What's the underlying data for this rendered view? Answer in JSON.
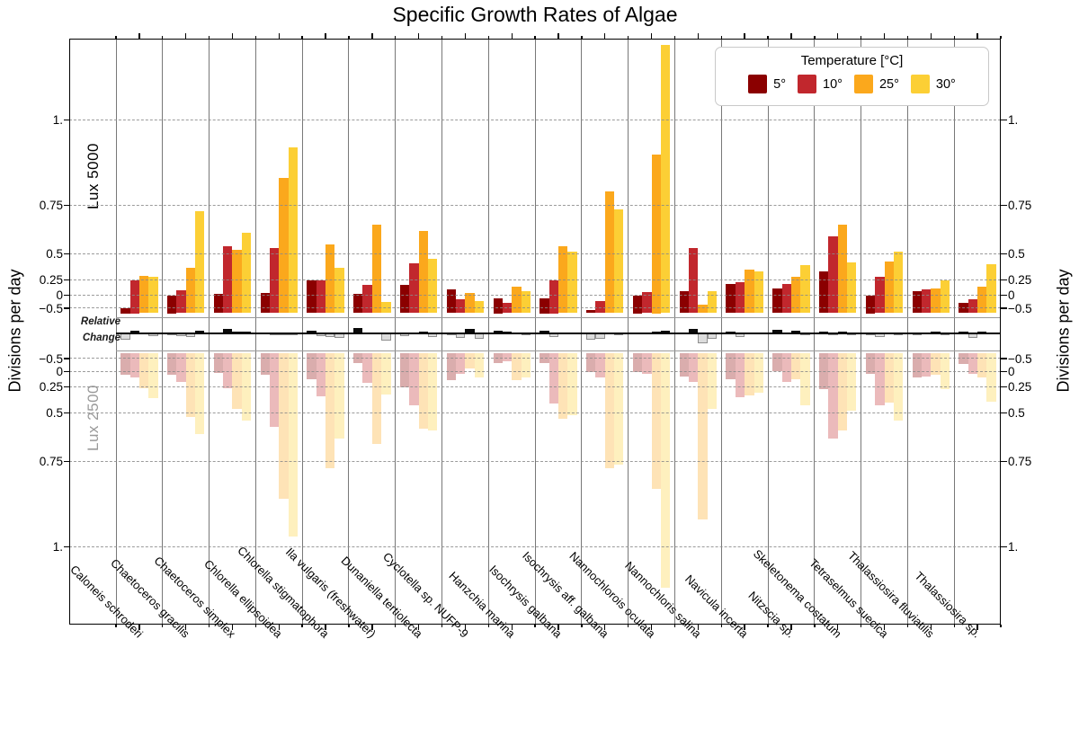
{
  "title": "Specific Growth Rates of Algae",
  "y_axis": {
    "label_left": "Divisions per day",
    "label_right": "Divisions per day"
  },
  "legend": {
    "title": "Temperature [°C]",
    "items": [
      {
        "label": "5°",
        "color": "#8b0000"
      },
      {
        "label": "10°",
        "color": "#c1272d"
      },
      {
        "label": "25°",
        "color": "#fba81c"
      },
      {
        "label": "30°",
        "color": "#fccf35"
      }
    ]
  },
  "panels": {
    "top": {
      "label": "Lux 5000",
      "label_color": "#000000",
      "tick_labels": [
        "1.",
        "0.75",
        "0.5",
        "0.25",
        "0",
        "−0.5"
      ],
      "tick_values": [
        1,
        0.75,
        0.5,
        0.25,
        0,
        -0.5
      ]
    },
    "bottom": {
      "label": "Lux 2500",
      "label_color": "#9a9a9a",
      "tick_labels": [
        "−0.5",
        "0",
        "0.25",
        "0.5",
        "0.75",
        "1."
      ],
      "tick_values": [
        -0.5,
        0,
        0.25,
        0.5,
        0.75,
        1
      ]
    }
  },
  "strip": {
    "label_line1": "Relative",
    "label_line2": "Change"
  },
  "style": {
    "bar_colors": [
      "#8b0000",
      "#c1272d",
      "#fba81c",
      "#fccf35"
    ],
    "mirror_opacity": 0.32,
    "grid_color": "#8a8a8a",
    "separator_color": "#787878",
    "rel_pos_color": "#0a0a0a",
    "rel_neg_fill": "#dcdcdc",
    "rel_neg_border": "#8f8f8f"
  },
  "chart_data": {
    "type": "bar",
    "title": "Specific Growth Rates of Algae",
    "ylabel": "Divisions per day",
    "yticks": [
      -0.5,
      0,
      0.25,
      0.5,
      0.75,
      1
    ],
    "grid": true,
    "legend_position": "top-right",
    "temperatures_c": [
      5,
      10,
      25,
      30
    ],
    "categories": [
      "Caloneis schroderi",
      "Chaetoceros gracilis",
      "Chaetoceros simplex",
      "Chlorella ellipsoidea",
      "Chlorella stigmatophora",
      "Ila vulgaris (freshwater)",
      "Dunaniella tertiolecta",
      "Cyclotella sp. NUFP-9",
      "Hanzchia marina",
      "Isochrysis galbana",
      "Isochrysis aff. galbana",
      "Nannochlorois oculata",
      "Nannochloris salina",
      "Navicula incerta",
      "Nitzscia sp.",
      "Skeletonema costatum",
      "Tetraselmus suecica",
      "Thalassiosira fluviatilis",
      "Thalassiosira sp."
    ],
    "series": [
      {
        "name": "Lux 5000",
        "values": [
          [
            -0.5,
            0.25,
            0.29,
            0.28
          ],
          [
            0.0,
            0.08,
            0.37,
            0.72
          ],
          [
            0.02,
            0.54,
            0.52,
            0.61
          ],
          [
            0.03,
            0.53,
            0.83,
            0.92
          ],
          [
            0.24,
            0.24,
            0.55,
            0.37
          ],
          [
            0.02,
            0.17,
            0.65,
            -0.36
          ],
          [
            0.17,
            0.41,
            0.62,
            0.45
          ],
          [
            0.1,
            -0.28,
            0.03,
            -0.33
          ],
          [
            -0.25,
            -0.38,
            0.14,
            0.06
          ],
          [
            -0.25,
            0.25,
            0.54,
            0.51
          ],
          [
            -0.53,
            -0.33,
            0.79,
            0.73
          ],
          [
            0.0,
            0.05,
            0.9,
            1.22
          ],
          [
            0.07,
            0.53,
            -0.43,
            0.06
          ],
          [
            0.18,
            0.21,
            0.35,
            0.33
          ],
          [
            0.11,
            0.19,
            0.28,
            0.39
          ],
          [
            0.33,
            0.59,
            0.65,
            0.42
          ],
          [
            0.0,
            0.28,
            0.43,
            0.51
          ],
          [
            0.07,
            0.1,
            0.11,
            0.24
          ],
          [
            -0.38,
            -0.28,
            0.14,
            0.4
          ]
        ]
      },
      {
        "name": "Lux 2500",
        "values": [
          [
            0.05,
            0.1,
            0.26,
            0.36
          ],
          [
            0.05,
            0.17,
            0.52,
            0.61
          ],
          [
            0.02,
            0.26,
            0.46,
            0.54
          ],
          [
            0.05,
            0.57,
            0.86,
            0.97
          ],
          [
            0.12,
            0.34,
            0.77,
            0.63
          ],
          [
            -0.4,
            0.18,
            0.66,
            0.32
          ],
          [
            0.25,
            0.43,
            0.58,
            0.59
          ],
          [
            0.14,
            0.03,
            -0.25,
            0.1
          ],
          [
            -0.4,
            -0.45,
            0.14,
            0.1
          ],
          [
            -0.4,
            0.41,
            0.53,
            0.51
          ],
          [
            0.0,
            0.1,
            0.77,
            0.76
          ],
          [
            0.0,
            0.03,
            0.83,
            1.12
          ],
          [
            0.08,
            0.17,
            0.92,
            0.46
          ],
          [
            0.12,
            0.35,
            0.33,
            0.31
          ],
          [
            -0.1,
            0.17,
            0.12,
            0.43
          ],
          [
            0.27,
            0.63,
            0.59,
            0.48
          ],
          [
            0.03,
            0.43,
            0.4,
            0.54
          ],
          [
            0.1,
            0.08,
            0.05,
            0.27
          ],
          [
            -0.38,
            0.03,
            0.1,
            0.39
          ]
        ]
      }
    ],
    "relative_change": [
      [
        -0.55,
        0.15,
        0.03,
        -0.08
      ],
      [
        -0.05,
        -0.09,
        -0.15,
        0.11
      ],
      [
        0.0,
        0.28,
        0.06,
        0.07
      ],
      [
        -0.02,
        -0.04,
        -0.03,
        -0.05
      ],
      [
        0.12,
        -0.1,
        -0.22,
        -0.26
      ],
      [
        0.42,
        -0.01,
        -0.01,
        -0.68
      ],
      [
        -0.08,
        -0.02,
        0.04,
        -0.14
      ],
      [
        -0.04,
        -0.31,
        0.28,
        -0.43
      ],
      [
        0.15,
        0.07,
        0.0,
        -0.04
      ],
      [
        0.15,
        -0.16,
        0.01,
        0.0
      ],
      [
        -0.53,
        -0.43,
        0.02,
        -0.03
      ],
      [
        0.0,
        0.02,
        0.07,
        0.1
      ],
      [
        -0.01,
        0.36,
        -1.35,
        -0.4
      ],
      [
        0.06,
        -0.14,
        0.02,
        0.02
      ],
      [
        0.21,
        0.02,
        0.16,
        -0.04
      ],
      [
        0.06,
        -0.04,
        0.06,
        -0.06
      ],
      [
        -0.03,
        -0.15,
        0.03,
        -0.03
      ],
      [
        -0.03,
        0.02,
        0.06,
        -0.03
      ],
      [
        0.05,
        -0.3,
        0.04,
        0.01
      ]
    ]
  }
}
